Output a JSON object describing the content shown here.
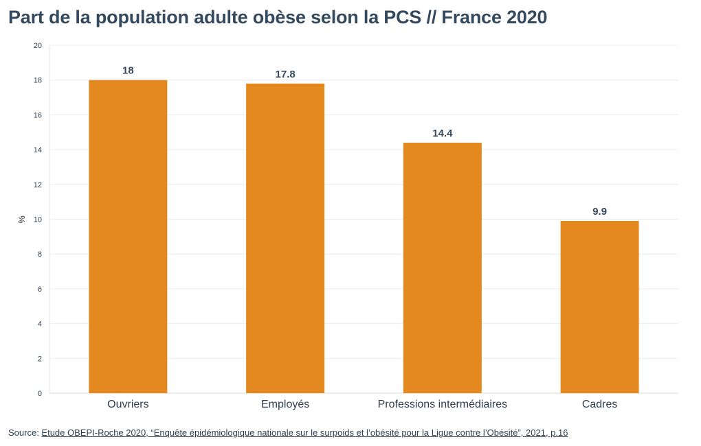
{
  "header": {
    "title": "Part de la population adulte obèse selon la PCS // France 2020"
  },
  "chart_data": {
    "type": "bar",
    "title": "Part de la population adulte obèse selon la PCS // France 2020",
    "xlabel": "",
    "ylabel": "%",
    "categories": [
      "Ouvriers",
      "Employés",
      "Professions intermédiaires",
      "Cadres"
    ],
    "values": [
      18,
      17.8,
      14.4,
      9.9
    ],
    "data_labels": [
      "18",
      "17.8",
      "14.4",
      "9.9"
    ],
    "ylim": [
      0,
      20
    ],
    "yticks": [
      0,
      2,
      4,
      6,
      8,
      10,
      12,
      14,
      16,
      18,
      20
    ],
    "grid": true,
    "bar_color": "#e3891f",
    "legend": "none"
  },
  "footer": {
    "source_prefix": "Source: ",
    "source_link": "Etude OBEPI-Roche 2020, “Enquête épidémiologique nationale sur le surpoids et l’obésité pour la Ligue contre l’Obésité”, 2021, p.16"
  }
}
